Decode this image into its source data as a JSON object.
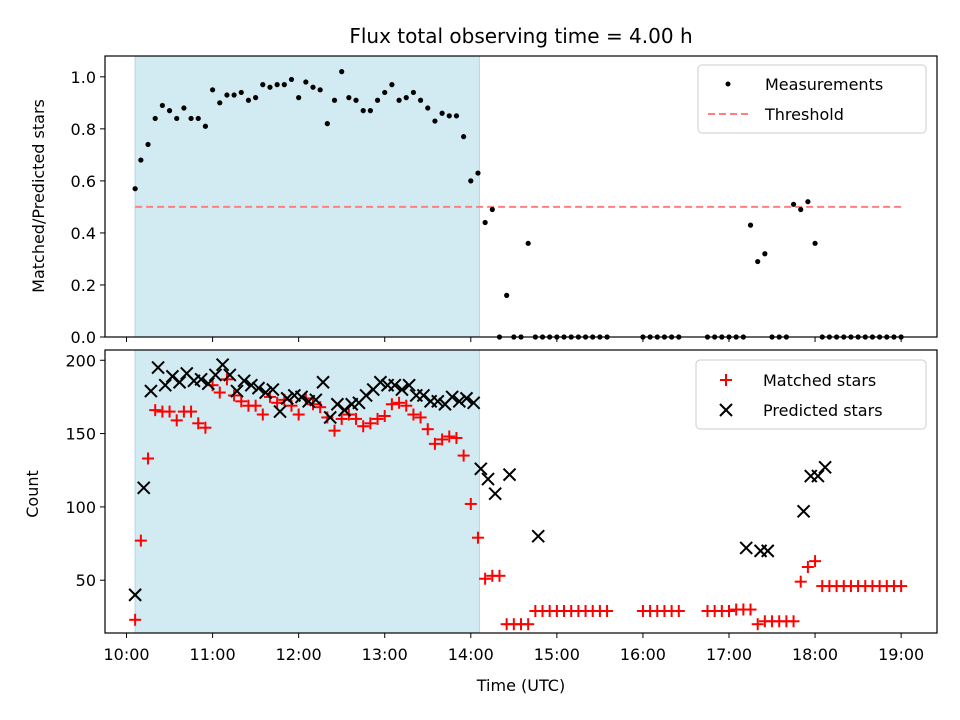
{
  "chart_data": [
    {
      "type": "scatter",
      "title": "Flux total observing time = 4.00 h",
      "xlabel": "",
      "ylabel": "Matched/Predicted stars",
      "xlim": [
        "09:45",
        "19:25"
      ],
      "ylim": [
        0,
        1.08
      ],
      "yticks": [
        0.0,
        0.2,
        0.4,
        0.6,
        0.8,
        1.0
      ],
      "ytick_labels": [
        "0.0",
        "0.2",
        "0.4",
        "0.6",
        "0.8",
        "1.0"
      ],
      "grid": false,
      "legend_position": "top-right",
      "shaded_span": {
        "start": "10:06",
        "end": "14:06",
        "color": "#add8e6"
      },
      "series": [
        {
          "name": "Measurements",
          "style": "points",
          "color": "#000000",
          "x": [
            "10:06",
            "10:10",
            "10:15",
            "10:20",
            "10:25",
            "10:30",
            "10:35",
            "10:40",
            "10:45",
            "10:50",
            "10:55",
            "11:00",
            "11:05",
            "11:10",
            "11:15",
            "11:20",
            "11:25",
            "11:30",
            "11:35",
            "11:40",
            "11:45",
            "11:50",
            "11:55",
            "12:00",
            "12:05",
            "12:10",
            "12:15",
            "12:20",
            "12:25",
            "12:30",
            "12:35",
            "12:40",
            "12:45",
            "12:50",
            "12:55",
            "13:00",
            "13:05",
            "13:10",
            "13:15",
            "13:20",
            "13:25",
            "13:30",
            "13:35",
            "13:40",
            "13:45",
            "13:50",
            "13:55",
            "14:00",
            "14:05",
            "14:10",
            "14:15",
            "14:20",
            "14:25",
            "14:30",
            "14:35",
            "14:40",
            "14:45",
            "14:50",
            "14:55",
            "15:00",
            "15:05",
            "15:10",
            "15:15",
            "15:20",
            "15:25",
            "15:30",
            "15:35",
            "16:00",
            "16:05",
            "16:10",
            "16:15",
            "16:20",
            "16:25",
            "16:45",
            "16:50",
            "16:55",
            "17:00",
            "17:05",
            "17:10",
            "17:15",
            "17:20",
            "17:25",
            "17:30",
            "17:35",
            "17:40",
            "17:45",
            "17:50",
            "17:55",
            "18:00",
            "18:05",
            "18:10",
            "18:15",
            "18:20",
            "18:25",
            "18:30",
            "18:35",
            "18:40",
            "18:45",
            "18:50",
            "18:55",
            "19:00"
          ],
          "y": [
            0.57,
            0.68,
            0.74,
            0.84,
            0.89,
            0.87,
            0.84,
            0.88,
            0.84,
            0.84,
            0.81,
            0.95,
            0.9,
            0.93,
            0.93,
            0.94,
            0.91,
            0.92,
            0.97,
            0.96,
            0.97,
            0.97,
            0.99,
            0.92,
            0.98,
            0.96,
            0.95,
            0.82,
            0.91,
            1.02,
            0.92,
            0.91,
            0.87,
            0.87,
            0.91,
            0.94,
            0.97,
            0.91,
            0.92,
            0.94,
            0.91,
            0.88,
            0.83,
            0.86,
            0.85,
            0.85,
            0.77,
            0.6,
            0.63,
            0.44,
            0.49,
            0.0,
            0.16,
            0.0,
            0.0,
            0.36,
            0.0,
            0.0,
            0.0,
            0.0,
            0.0,
            0.0,
            0.0,
            0.0,
            0.0,
            0.0,
            0.0,
            0.0,
            0.0,
            0.0,
            0.0,
            0.0,
            0.0,
            0.0,
            0.0,
            0.0,
            0.0,
            0.0,
            0.0,
            0.43,
            0.29,
            0.32,
            0.0,
            0.0,
            0.0,
            0.51,
            0.49,
            0.52,
            0.36,
            0.0,
            0.0,
            0.0,
            0.0,
            0.0,
            0.0,
            0.0,
            0.0,
            0.0,
            0.0,
            0.0,
            0.0
          ]
        },
        {
          "name": "Threshold",
          "style": "dashed-line",
          "color": "#ff7f7f",
          "x": [
            "10:06",
            "19:00"
          ],
          "y": [
            0.5,
            0.5
          ]
        }
      ]
    },
    {
      "type": "scatter",
      "title": "",
      "xlabel": "Time (UTC)",
      "ylabel": "Count",
      "xlim": [
        "09:45",
        "19:25"
      ],
      "ylim": [
        14,
        207
      ],
      "xticks": [
        "10:00",
        "11:00",
        "12:00",
        "13:00",
        "14:00",
        "15:00",
        "16:00",
        "17:00",
        "18:00",
        "19:00"
      ],
      "yticks": [
        50,
        100,
        150,
        200
      ],
      "ytick_labels": [
        "50",
        "100",
        "150",
        "200"
      ],
      "grid": false,
      "legend_position": "top-right",
      "shaded_span": {
        "start": "10:06",
        "end": "14:06",
        "color": "#add8e6"
      },
      "series": [
        {
          "name": "Matched stars",
          "style": "plus",
          "color": "#ff0000",
          "x": [
            "10:06",
            "10:10",
            "10:15",
            "10:20",
            "10:25",
            "10:30",
            "10:35",
            "10:40",
            "10:45",
            "10:50",
            "10:55",
            "11:00",
            "11:05",
            "11:10",
            "11:15",
            "11:20",
            "11:25",
            "11:30",
            "11:35",
            "11:40",
            "11:45",
            "11:50",
            "11:55",
            "12:00",
            "12:05",
            "12:10",
            "12:15",
            "12:20",
            "12:25",
            "12:30",
            "12:35",
            "12:40",
            "12:45",
            "12:50",
            "12:55",
            "13:00",
            "13:05",
            "13:10",
            "13:15",
            "13:20",
            "13:25",
            "13:30",
            "13:35",
            "13:40",
            "13:45",
            "13:50",
            "13:55",
            "14:00",
            "14:05",
            "14:10",
            "14:15",
            "14:20",
            "14:25",
            "14:30",
            "14:35",
            "14:40",
            "14:45",
            "14:50",
            "14:55",
            "15:00",
            "15:05",
            "15:10",
            "15:15",
            "15:20",
            "15:25",
            "15:30",
            "15:35",
            "16:00",
            "16:05",
            "16:10",
            "16:15",
            "16:20",
            "16:25",
            "16:45",
            "16:50",
            "16:55",
            "17:00",
            "17:05",
            "17:10",
            "17:15",
            "17:20",
            "17:25",
            "17:30",
            "17:35",
            "17:40",
            "17:45",
            "17:50",
            "17:55",
            "18:00",
            "18:05",
            "18:10",
            "18:15",
            "18:20",
            "18:25",
            "18:30",
            "18:35",
            "18:40",
            "18:45",
            "18:50",
            "18:55",
            "19:00"
          ],
          "y": [
            23,
            77,
            133,
            166,
            165,
            165,
            159,
            165,
            165,
            157,
            154,
            183,
            178,
            187,
            176,
            172,
            169,
            169,
            163,
            175,
            171,
            173,
            169,
            163,
            174,
            170,
            168,
            161,
            152,
            160,
            163,
            160,
            155,
            157,
            160,
            162,
            170,
            171,
            169,
            163,
            161,
            153,
            143,
            146,
            148,
            147,
            135,
            102,
            79,
            51,
            53,
            53,
            20,
            20,
            20,
            20,
            29,
            29,
            29,
            29,
            29,
            29,
            29,
            29,
            29,
            29,
            29,
            29,
            29,
            29,
            29,
            29,
            29,
            29,
            29,
            29,
            29,
            30,
            30,
            30,
            20,
            22,
            22,
            22,
            22,
            22,
            49,
            59,
            63,
            46,
            46,
            46,
            46,
            46,
            46,
            46,
            46,
            46,
            46,
            46,
            46
          ]
        },
        {
          "name": "Predicted stars",
          "style": "x",
          "color": "#000000",
          "x": [
            "10:06",
            "10:12",
            "10:17",
            "10:22",
            "10:27",
            "10:32",
            "10:37",
            "10:42",
            "10:47",
            "10:52",
            "10:57",
            "11:02",
            "11:07",
            "11:12",
            "11:17",
            "11:22",
            "11:27",
            "11:32",
            "11:37",
            "11:42",
            "11:47",
            "11:52",
            "11:57",
            "12:02",
            "12:07",
            "12:12",
            "12:17",
            "12:22",
            "12:27",
            "12:32",
            "12:37",
            "12:42",
            "12:47",
            "12:52",
            "12:57",
            "13:02",
            "13:07",
            "13:12",
            "13:17",
            "13:22",
            "13:27",
            "13:32",
            "13:37",
            "13:42",
            "13:47",
            "13:52",
            "13:57",
            "14:02",
            "14:07",
            "14:12",
            "14:17",
            "14:27",
            "14:47",
            "17:12",
            "17:22",
            "17:27",
            "17:52",
            "17:57",
            "18:02",
            "18:07"
          ],
          "y": [
            40,
            113,
            179,
            195,
            183,
            189,
            185,
            191,
            186,
            187,
            184,
            190,
            197,
            190,
            179,
            186,
            183,
            181,
            178,
            180,
            165,
            174,
            176,
            175,
            172,
            173,
            185,
            161,
            170,
            166,
            170,
            171,
            176,
            180,
            185,
            183,
            183,
            180,
            183,
            176,
            176,
            172,
            172,
            170,
            175,
            172,
            174,
            171,
            126,
            119,
            109,
            122,
            80,
            72,
            70,
            70,
            97,
            121,
            121,
            127
          ]
        }
      ]
    }
  ]
}
